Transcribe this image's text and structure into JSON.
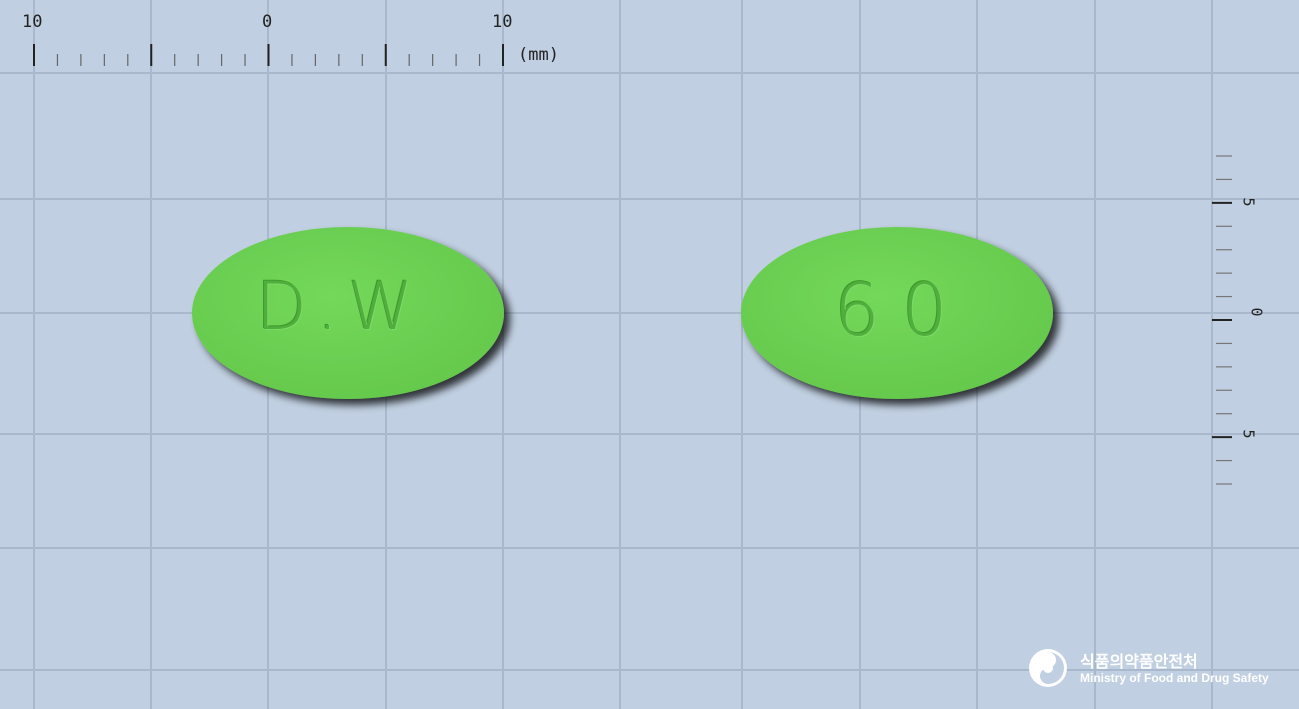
{
  "ruler": {
    "top_labels": [
      "10",
      "0",
      "10"
    ],
    "unit": "(mm)",
    "side_labels": [
      "5",
      "0",
      "5"
    ]
  },
  "pills": [
    {
      "imprint": "D.W",
      "color": "#6fd256"
    },
    {
      "imprint": "60",
      "color": "#6fd256"
    }
  ],
  "logo": {
    "name_kr": "식품의약품안전처",
    "name_en": "Ministry of Food and Drug Safety",
    "icon": "mfds-logo-icon"
  },
  "colors": {
    "background": "#c0cfe1",
    "grid": "#a9b8cc",
    "pill": "#6fd256",
    "pill_shadow": "#3e4a3a"
  }
}
